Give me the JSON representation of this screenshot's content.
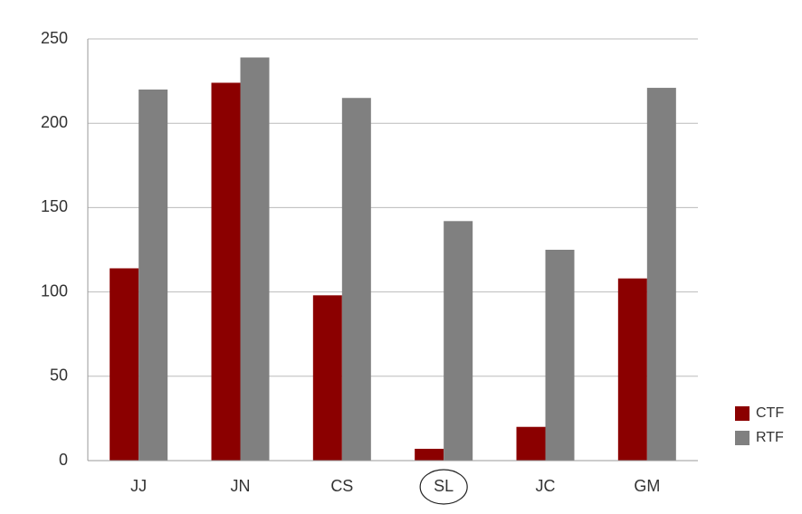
{
  "chart_data": {
    "type": "bar",
    "categories": [
      "JJ",
      "JN",
      "CS",
      "SL",
      "JC",
      "GM"
    ],
    "series": [
      {
        "name": "CTF",
        "color": "#8b0000",
        "values": [
          114,
          224,
          98,
          7,
          20,
          108
        ]
      },
      {
        "name": "RTF",
        "color": "#808080",
        "values": [
          220,
          239,
          215,
          142,
          125,
          221
        ]
      }
    ],
    "ylim": [
      0,
      250
    ],
    "yticks": [
      0,
      50,
      100,
      150,
      200,
      250
    ],
    "grid": true,
    "legend": "right",
    "highlight": "SL"
  }
}
